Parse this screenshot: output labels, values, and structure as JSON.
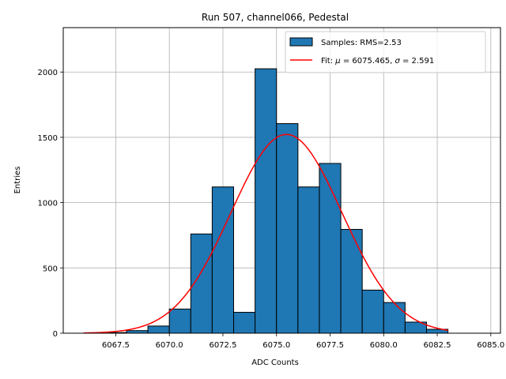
{
  "chart_data": {
    "type": "bar",
    "title": "Run 507, channel066, Pedestal",
    "xlabel": "ADC Counts",
    "ylabel": "Entries",
    "xlim": [
      6065.05,
      6085.45
    ],
    "ylim": [
      0,
      2340
    ],
    "grid": true,
    "x_ticks": [
      6067.5,
      6070.0,
      6072.5,
      6075.0,
      6077.5,
      6080.0,
      6082.5,
      6085.0
    ],
    "x_tick_labels": [
      "6067.5",
      "6070.0",
      "6072.5",
      "6075.0",
      "6077.5",
      "6080.0",
      "6082.5",
      "6085.0"
    ],
    "y_ticks": [
      0,
      500,
      1000,
      1500,
      2000
    ],
    "y_tick_labels": [
      "0",
      "500",
      "1000",
      "1500",
      "2000"
    ],
    "bin_edges": [
      6066,
      6067,
      6068,
      6069,
      6070,
      6071,
      6072,
      6073,
      6074,
      6075,
      6076,
      6077,
      6078,
      6079,
      6080,
      6081,
      6082,
      6083
    ],
    "values": [
      0,
      5,
      20,
      55,
      185,
      760,
      1120,
      160,
      2025,
      1605,
      1120,
      1300,
      795,
      330,
      235,
      85,
      30
    ],
    "series": [
      {
        "name": "Samples: RMS=2.53",
        "kind": "histogram",
        "color": "#1f77b4",
        "edgecolor": "#000000"
      },
      {
        "name": "Fit: μ = 6075.465, σ = 2.591",
        "kind": "gaussian-fit",
        "color": "#ff0000",
        "mu": 6075.465,
        "sigma": 2.591,
        "amplitude": 1522,
        "x_range": [
          6066,
          6083
        ]
      }
    ],
    "legend": {
      "placement": "top-right",
      "entries": [
        {
          "label_prefix": "Samples: RMS=2.53",
          "kind": "patch"
        },
        {
          "label_prefix": "Fit: ",
          "mu_symbol": "μ",
          "mu_text": " = 6075.465, ",
          "sigma_symbol": "σ",
          "sigma_text": " = 2.591",
          "kind": "line"
        }
      ]
    }
  }
}
